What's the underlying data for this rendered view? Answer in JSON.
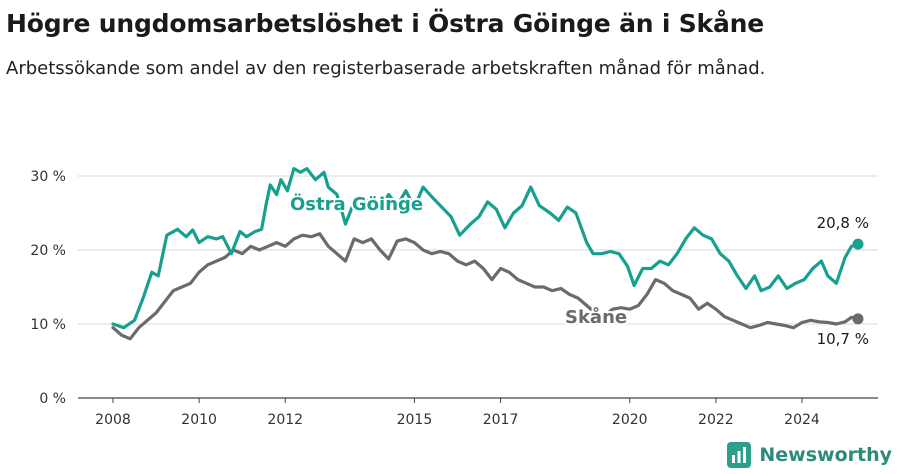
{
  "title": "Högre ungdomsarbetslöshet i Östra Göinge än i Skåne",
  "subtitle": "Arbetssökande som andel av den registerbaserade arbetskraften månad för månad.",
  "brand": {
    "name": "Newsworthy",
    "icon": "newsworthy-logo-icon"
  },
  "colors": {
    "goinge": "#17a08e",
    "skane": "#6b6b6e"
  },
  "chart_data": {
    "type": "line",
    "title": "Högre ungdomsarbetslöshet i Östra Göinge än i Skåne",
    "ylabel": "",
    "xlabel": "",
    "ylim": [
      0,
      30
    ],
    "xlim": [
      2007.75,
      2025.4
    ],
    "yticks": [
      0,
      10,
      20,
      30
    ],
    "ytick_labels": [
      "0 %",
      "10 %",
      "20 %",
      "30 %"
    ],
    "xticks": [
      2008,
      2010,
      2012,
      2015,
      2017,
      2020,
      2022,
      2024
    ],
    "xtick_labels": [
      "2008",
      "2010",
      "2012",
      "2015",
      "2017",
      "2020",
      "2022",
      "2024"
    ],
    "grid": "horizontal",
    "series": [
      {
        "name": "Östra Göinge",
        "color": "#17a08e",
        "end_label": "20,8 %",
        "points": [
          [
            2008.0,
            10.0
          ],
          [
            2008.25,
            9.5
          ],
          [
            2008.5,
            10.5
          ],
          [
            2008.7,
            13.5
          ],
          [
            2008.9,
            17.0
          ],
          [
            2009.05,
            16.5
          ],
          [
            2009.25,
            22.0
          ],
          [
            2009.5,
            22.8
          ],
          [
            2009.7,
            21.8
          ],
          [
            2009.85,
            22.7
          ],
          [
            2010.0,
            21.0
          ],
          [
            2010.2,
            21.8
          ],
          [
            2010.4,
            21.5
          ],
          [
            2010.55,
            21.8
          ],
          [
            2010.75,
            19.5
          ],
          [
            2010.95,
            22.5
          ],
          [
            2011.1,
            21.8
          ],
          [
            2011.3,
            22.5
          ],
          [
            2011.45,
            22.8
          ],
          [
            2011.55,
            26.0
          ],
          [
            2011.65,
            28.8
          ],
          [
            2011.8,
            27.5
          ],
          [
            2011.9,
            29.5
          ],
          [
            2012.05,
            28.0
          ],
          [
            2012.2,
            31.0
          ],
          [
            2012.35,
            30.5
          ],
          [
            2012.5,
            31.0
          ],
          [
            2012.7,
            29.5
          ],
          [
            2012.9,
            30.5
          ],
          [
            2013.0,
            28.5
          ],
          [
            2013.2,
            27.5
          ],
          [
            2013.4,
            23.5
          ],
          [
            2013.6,
            26.5
          ],
          [
            2013.8,
            26.0
          ],
          [
            2014.0,
            27.0
          ],
          [
            2014.2,
            25.5
          ],
          [
            2014.4,
            27.5
          ],
          [
            2014.6,
            26.0
          ],
          [
            2014.8,
            28.0
          ],
          [
            2015.0,
            25.8
          ],
          [
            2015.2,
            28.5
          ],
          [
            2015.4,
            27.2
          ],
          [
            2015.6,
            26.0
          ],
          [
            2015.85,
            24.5
          ],
          [
            2016.05,
            22.0
          ],
          [
            2016.3,
            23.5
          ],
          [
            2016.5,
            24.5
          ],
          [
            2016.7,
            26.5
          ],
          [
            2016.9,
            25.5
          ],
          [
            2017.1,
            23.0
          ],
          [
            2017.3,
            25.0
          ],
          [
            2017.5,
            26.0
          ],
          [
            2017.7,
            28.5
          ],
          [
            2017.9,
            26.0
          ],
          [
            2018.15,
            25.0
          ],
          [
            2018.35,
            24.0
          ],
          [
            2018.55,
            25.8
          ],
          [
            2018.75,
            25.0
          ],
          [
            2019.0,
            21.0
          ],
          [
            2019.15,
            19.5
          ],
          [
            2019.35,
            19.5
          ],
          [
            2019.55,
            19.8
          ],
          [
            2019.75,
            19.5
          ],
          [
            2019.95,
            17.8
          ],
          [
            2020.1,
            15.2
          ],
          [
            2020.3,
            17.5
          ],
          [
            2020.5,
            17.5
          ],
          [
            2020.7,
            18.5
          ],
          [
            2020.9,
            18.0
          ],
          [
            2021.1,
            19.5
          ],
          [
            2021.3,
            21.5
          ],
          [
            2021.5,
            23.0
          ],
          [
            2021.7,
            22.0
          ],
          [
            2021.9,
            21.5
          ],
          [
            2022.1,
            19.5
          ],
          [
            2022.3,
            18.5
          ],
          [
            2022.5,
            16.5
          ],
          [
            2022.7,
            14.8
          ],
          [
            2022.9,
            16.5
          ],
          [
            2023.05,
            14.5
          ],
          [
            2023.25,
            15.0
          ],
          [
            2023.45,
            16.5
          ],
          [
            2023.65,
            14.8
          ],
          [
            2023.85,
            15.5
          ],
          [
            2024.05,
            16.0
          ],
          [
            2024.25,
            17.5
          ],
          [
            2024.45,
            18.5
          ],
          [
            2024.6,
            16.5
          ],
          [
            2024.8,
            15.5
          ],
          [
            2025.0,
            19.0
          ],
          [
            2025.15,
            20.5
          ],
          [
            2025.3,
            20.8
          ]
        ]
      },
      {
        "name": "Skåne",
        "color": "#6b6b6e",
        "end_label": "10,7 %",
        "points": [
          [
            2008.0,
            9.5
          ],
          [
            2008.2,
            8.5
          ],
          [
            2008.4,
            8.0
          ],
          [
            2008.6,
            9.5
          ],
          [
            2008.8,
            10.5
          ],
          [
            2009.0,
            11.5
          ],
          [
            2009.2,
            13.0
          ],
          [
            2009.4,
            14.5
          ],
          [
            2009.6,
            15.0
          ],
          [
            2009.8,
            15.5
          ],
          [
            2010.0,
            17.0
          ],
          [
            2010.2,
            18.0
          ],
          [
            2010.4,
            18.5
          ],
          [
            2010.6,
            19.0
          ],
          [
            2010.8,
            20.0
          ],
          [
            2011.0,
            19.5
          ],
          [
            2011.2,
            20.5
          ],
          [
            2011.4,
            20.0
          ],
          [
            2011.6,
            20.5
          ],
          [
            2011.8,
            21.0
          ],
          [
            2012.0,
            20.5
          ],
          [
            2012.2,
            21.5
          ],
          [
            2012.4,
            22.0
          ],
          [
            2012.6,
            21.8
          ],
          [
            2012.8,
            22.2
          ],
          [
            2013.0,
            20.5
          ],
          [
            2013.2,
            19.5
          ],
          [
            2013.4,
            18.5
          ],
          [
            2013.6,
            21.5
          ],
          [
            2013.8,
            21.0
          ],
          [
            2014.0,
            21.5
          ],
          [
            2014.2,
            20.0
          ],
          [
            2014.4,
            18.8
          ],
          [
            2014.6,
            21.2
          ],
          [
            2014.8,
            21.5
          ],
          [
            2015.0,
            21.0
          ],
          [
            2015.2,
            20.0
          ],
          [
            2015.4,
            19.5
          ],
          [
            2015.6,
            19.8
          ],
          [
            2015.8,
            19.5
          ],
          [
            2016.0,
            18.5
          ],
          [
            2016.2,
            18.0
          ],
          [
            2016.4,
            18.5
          ],
          [
            2016.6,
            17.5
          ],
          [
            2016.8,
            16.0
          ],
          [
            2017.0,
            17.5
          ],
          [
            2017.2,
            17.0
          ],
          [
            2017.4,
            16.0
          ],
          [
            2017.6,
            15.5
          ],
          [
            2017.8,
            15.0
          ],
          [
            2018.0,
            15.0
          ],
          [
            2018.2,
            14.5
          ],
          [
            2018.4,
            14.8
          ],
          [
            2018.6,
            14.0
          ],
          [
            2018.8,
            13.5
          ],
          [
            2019.0,
            12.5
          ],
          [
            2019.2,
            11.5
          ],
          [
            2019.4,
            11.0
          ],
          [
            2019.6,
            12.0
          ],
          [
            2019.8,
            12.2
          ],
          [
            2020.0,
            12.0
          ],
          [
            2020.2,
            12.5
          ],
          [
            2020.4,
            14.0
          ],
          [
            2020.6,
            16.0
          ],
          [
            2020.8,
            15.5
          ],
          [
            2021.0,
            14.5
          ],
          [
            2021.2,
            14.0
          ],
          [
            2021.4,
            13.5
          ],
          [
            2021.6,
            12.0
          ],
          [
            2021.8,
            12.8
          ],
          [
            2022.0,
            12.0
          ],
          [
            2022.2,
            11.0
          ],
          [
            2022.4,
            10.5
          ],
          [
            2022.6,
            10.0
          ],
          [
            2022.8,
            9.5
          ],
          [
            2023.0,
            9.8
          ],
          [
            2023.2,
            10.2
          ],
          [
            2023.4,
            10.0
          ],
          [
            2023.6,
            9.8
          ],
          [
            2023.8,
            9.5
          ],
          [
            2024.0,
            10.2
          ],
          [
            2024.2,
            10.5
          ],
          [
            2024.4,
            10.3
          ],
          [
            2024.6,
            10.2
          ],
          [
            2024.8,
            10.0
          ],
          [
            2025.0,
            10.3
          ],
          [
            2025.15,
            10.9
          ],
          [
            2025.3,
            10.7
          ]
        ]
      }
    ]
  }
}
